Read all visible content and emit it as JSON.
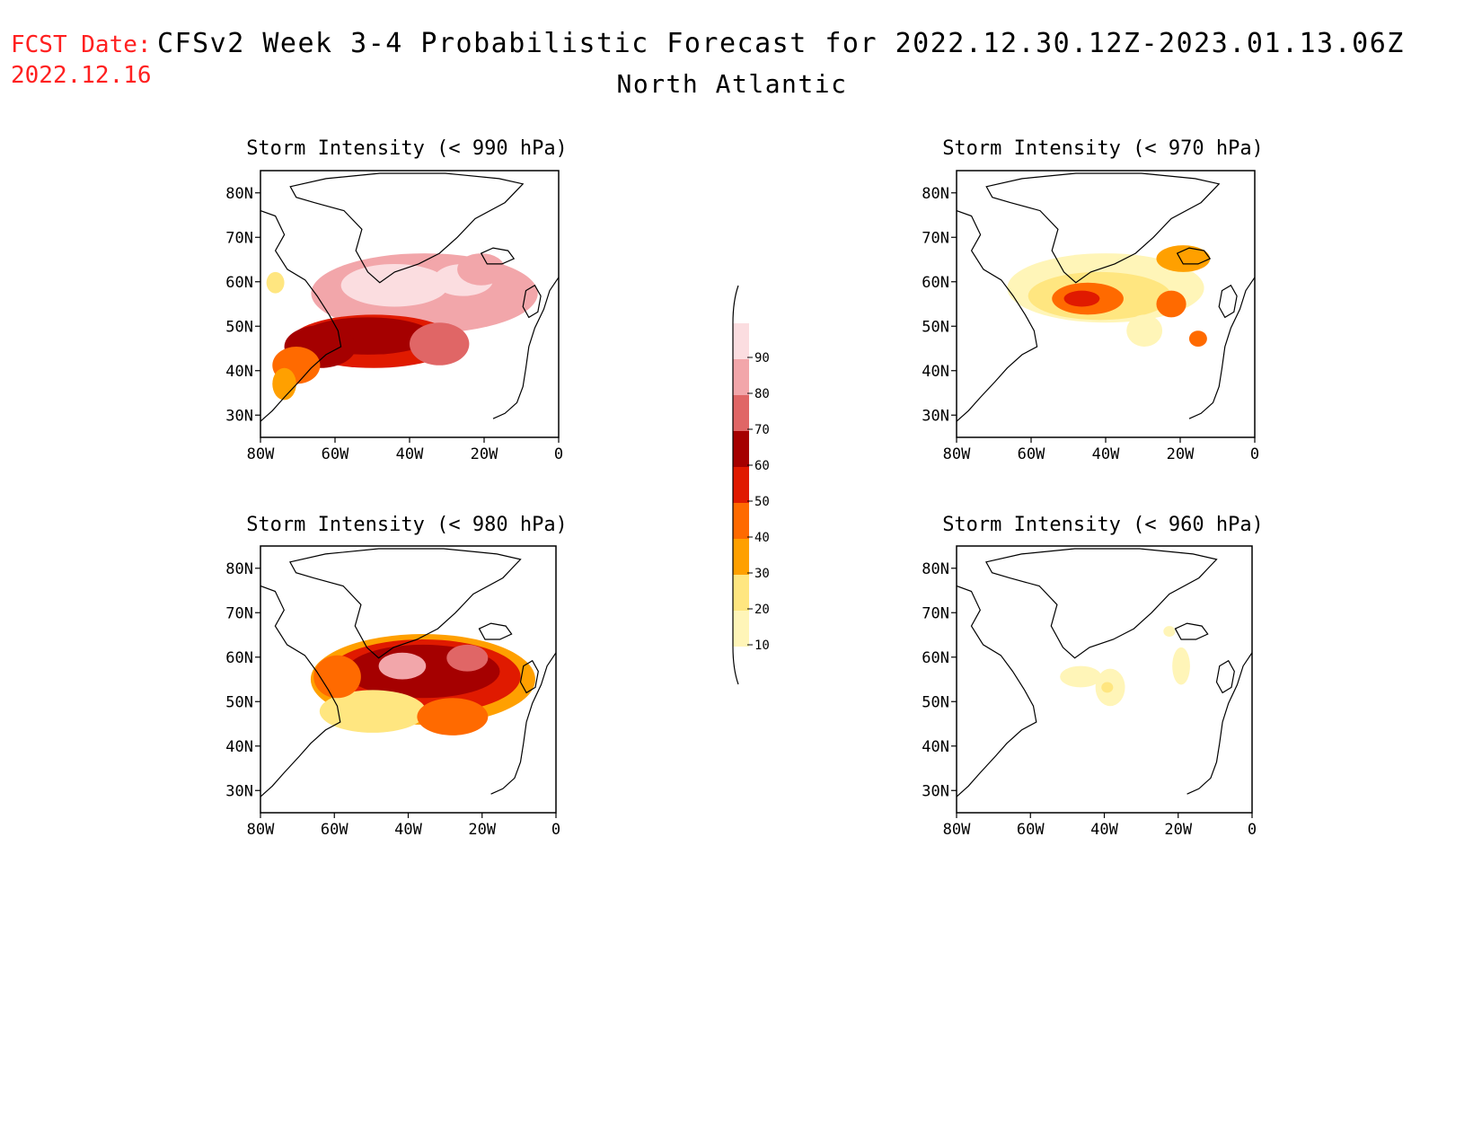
{
  "header": {
    "fcst_label": "FCST Date:",
    "fcst_date": "2022.12.16",
    "title": "CFSv2 Week 3-4 Probabilistic Forecast for 2022.12.30.12Z-2023.01.13.06Z",
    "region": "North Atlantic"
  },
  "colors": {
    "text": "#000000",
    "fcst": "#ff2020",
    "levels": [
      "#fff5b8",
      "#ffe680",
      "#ffa000",
      "#ff6a00",
      "#e01a00",
      "#a50000",
      "#e06666",
      "#f2a6aa",
      "#fbdde0"
    ]
  },
  "axes": {
    "lat_ticks": [
      "80N",
      "70N",
      "60N",
      "50N",
      "40N",
      "30N"
    ],
    "lon_ticks": [
      "80W",
      "60W",
      "40W",
      "20W",
      "0"
    ]
  },
  "panels": [
    {
      "title": "Storm Intensity (< 990 hPa)"
    },
    {
      "title": "Storm Intensity (< 970 hPa)"
    },
    {
      "title": "Storm Intensity (< 980 hPa)"
    },
    {
      "title": "Storm Intensity (< 960 hPa)"
    }
  ],
  "colorbar": {
    "labels": [
      "90",
      "80",
      "70",
      "60",
      "50",
      "40",
      "30",
      "20",
      "10"
    ]
  }
}
